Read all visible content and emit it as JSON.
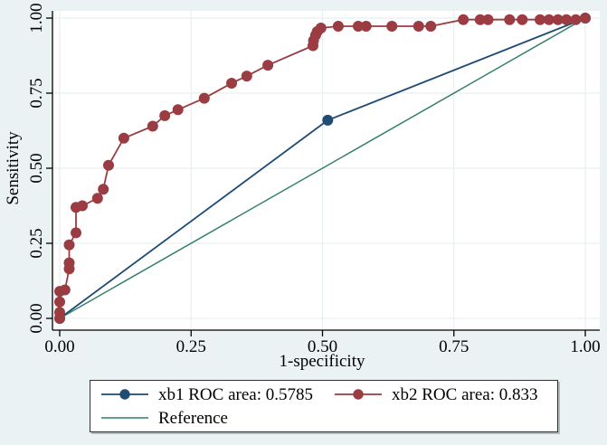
{
  "figure": {
    "background": "#EAF2F3",
    "plot_background": "#FFFFFF",
    "gridline_color": "#E6F0F1",
    "axis_color": "#000000",
    "legend_border_color": "#303030",
    "legend_background": "#FFFFFF"
  },
  "chart_data": {
    "type": "line",
    "subtype": "roc-curve-comparison",
    "title": "",
    "xlabel": "1-specificity",
    "ylabel": "Sensitivity",
    "xlim": [
      0,
      1
    ],
    "ylim": [
      0,
      1
    ],
    "grid": true,
    "legend_position": "bottom-center",
    "x_ticks": [
      0,
      0.25,
      0.5,
      0.75,
      1
    ],
    "x_tick_labels": [
      "0.00",
      "0.25",
      "0.50",
      "0.75",
      "1.00"
    ],
    "y_ticks": [
      0,
      0.25,
      0.5,
      0.75,
      1
    ],
    "y_tick_labels": [
      "0.00",
      "0.25",
      "0.50",
      "0.75",
      "1.00"
    ],
    "series": [
      {
        "name": "xb1",
        "legend_label": "xb1 ROC area: 0.5785",
        "roc_area": 0.5785,
        "color": "#1F4B75",
        "marker": true,
        "marker_size": 6,
        "z": 2,
        "points": [
          [
            0,
            0
          ],
          [
            0.51,
            0.66
          ],
          [
            1,
            1
          ]
        ]
      },
      {
        "name": "xb2",
        "legend_label": "xb2 ROC area: 0.833",
        "roc_area": 0.833,
        "color": "#9A3C42",
        "marker": true,
        "marker_size": 6,
        "z": 3,
        "points": [
          [
            0,
            0
          ],
          [
            0,
            0.02
          ],
          [
            0,
            0.055
          ],
          [
            0,
            0.09
          ],
          [
            0.01,
            0.095
          ],
          [
            0.018,
            0.165
          ],
          [
            0.018,
            0.185
          ],
          [
            0.018,
            0.245
          ],
          [
            0.031,
            0.285
          ],
          [
            0.031,
            0.37
          ],
          [
            0.043,
            0.375
          ],
          [
            0.072,
            0.4
          ],
          [
            0.083,
            0.43
          ],
          [
            0.093,
            0.51
          ],
          [
            0.122,
            0.6
          ],
          [
            0.177,
            0.64
          ],
          [
            0.2,
            0.675
          ],
          [
            0.225,
            0.695
          ],
          [
            0.275,
            0.733
          ],
          [
            0.327,
            0.783
          ],
          [
            0.356,
            0.807
          ],
          [
            0.396,
            0.843
          ],
          [
            0.482,
            0.908
          ],
          [
            0.483,
            0.925
          ],
          [
            0.487,
            0.943
          ],
          [
            0.49,
            0.955
          ],
          [
            0.497,
            0.967
          ],
          [
            0.53,
            0.973
          ],
          [
            0.568,
            0.973
          ],
          [
            0.583,
            0.973
          ],
          [
            0.632,
            0.973
          ],
          [
            0.683,
            0.973
          ],
          [
            0.706,
            0.973
          ],
          [
            0.768,
            0.995
          ],
          [
            0.8,
            0.995
          ],
          [
            0.815,
            0.995
          ],
          [
            0.856,
            0.995
          ],
          [
            0.88,
            0.995
          ],
          [
            0.914,
            0.995
          ],
          [
            0.931,
            0.995
          ],
          [
            0.948,
            0.995
          ],
          [
            0.964,
            0.995
          ],
          [
            0.982,
            0.995
          ],
          [
            1,
            1
          ]
        ]
      },
      {
        "name": "reference",
        "legend_label": "Reference",
        "color": "#337E6B",
        "marker": false,
        "marker_size": 0,
        "z": 1,
        "points": [
          [
            0,
            0
          ],
          [
            1,
            1
          ]
        ]
      }
    ]
  }
}
